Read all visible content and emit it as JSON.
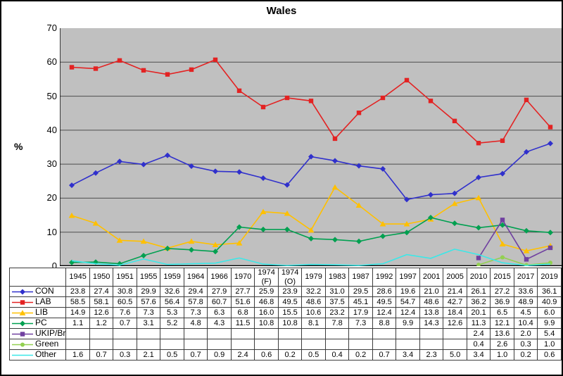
{
  "title": "Wales",
  "ylabel": "%",
  "colors": {
    "plot_bg": "#c0c0c0",
    "gridline": "#4d4d4d",
    "axis": "#000000",
    "table_border": "#3c3c3c"
  },
  "chart_data": {
    "type": "line",
    "title": "Wales",
    "xlabel": "",
    "ylabel": "%",
    "ylim": [
      0,
      70
    ],
    "ytick_step": 10,
    "grid": true,
    "legend_position": "table-left",
    "categories": [
      "1945",
      "1950",
      "1951",
      "1955",
      "1959",
      "1964",
      "1966",
      "1970",
      "1974 (F)",
      "1974 (O)",
      "1979",
      "1983",
      "1987",
      "1992",
      "1997",
      "2001",
      "2005",
      "2010",
      "2015",
      "2017",
      "2019"
    ],
    "series": [
      {
        "name": "CON",
        "color": "#3030cc",
        "marker": "diamond",
        "values": [
          23.8,
          27.4,
          30.8,
          29.9,
          32.6,
          29.4,
          27.9,
          27.7,
          25.9,
          23.9,
          32.2,
          31.0,
          29.5,
          28.6,
          19.6,
          21.0,
          21.4,
          26.1,
          27.2,
          33.6,
          36.1
        ]
      },
      {
        "name": "LAB",
        "color": "#e32222",
        "marker": "square",
        "values": [
          58.5,
          58.1,
          60.5,
          57.6,
          56.4,
          57.8,
          60.7,
          51.6,
          46.8,
          49.5,
          48.6,
          37.5,
          45.1,
          49.5,
          54.7,
          48.6,
          42.7,
          36.2,
          36.9,
          48.9,
          40.9
        ]
      },
      {
        "name": "LIB",
        "color": "#ffc000",
        "marker": "triangle",
        "values": [
          14.9,
          12.6,
          7.6,
          7.3,
          5.3,
          7.3,
          6.3,
          6.8,
          16.0,
          15.5,
          10.6,
          23.2,
          17.9,
          12.4,
          12.4,
          13.8,
          18.4,
          20.1,
          6.5,
          4.5,
          6.0
        ]
      },
      {
        "name": "PC",
        "color": "#00a050",
        "marker": "diamond",
        "values": [
          1.1,
          1.2,
          0.7,
          3.1,
          5.2,
          4.8,
          4.3,
          11.5,
          10.8,
          10.8,
          8.1,
          7.8,
          7.3,
          8.8,
          9.9,
          14.3,
          12.6,
          11.3,
          12.1,
          10.4,
          9.9
        ]
      },
      {
        "name": "UKIP/Br",
        "color": "#7040a0",
        "marker": "square",
        "values": [
          null,
          null,
          null,
          null,
          null,
          null,
          null,
          null,
          null,
          null,
          null,
          null,
          null,
          null,
          null,
          null,
          null,
          2.4,
          13.6,
          2.0,
          5.4
        ]
      },
      {
        "name": "Green",
        "color": "#92d050",
        "marker": "circle",
        "values": [
          null,
          null,
          null,
          null,
          null,
          null,
          null,
          null,
          null,
          null,
          null,
          null,
          null,
          null,
          null,
          null,
          null,
          0.4,
          2.6,
          0.3,
          1.0
        ]
      },
      {
        "name": "Other",
        "color": "#3ae8e8",
        "marker": "none",
        "values": [
          1.6,
          0.7,
          0.3,
          2.1,
          0.5,
          0.7,
          0.9,
          2.4,
          0.6,
          0.2,
          0.5,
          0.4,
          0.2,
          0.7,
          3.4,
          2.3,
          5.0,
          3.4,
          1.0,
          0.2,
          0.6
        ]
      }
    ]
  }
}
